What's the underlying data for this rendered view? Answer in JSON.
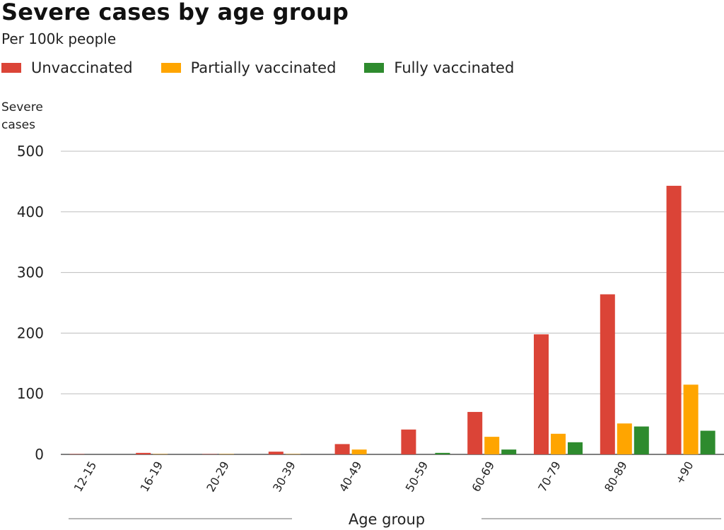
{
  "chart_data": {
    "type": "bar",
    "title": "Severe cases by age group",
    "subtitle": "Per 100k people",
    "ylabel": "Severe cases",
    "xlabel": "Age group",
    "ylim": [
      0,
      500
    ],
    "yticks": [
      0,
      100,
      200,
      300,
      400,
      500
    ],
    "grid": true,
    "legend_position": "top-left",
    "categories": [
      "12-15",
      "16-19",
      "20-29",
      "30-39",
      "40-49",
      "50-59",
      "60-69",
      "70-79",
      "80-89",
      "+90"
    ],
    "series": [
      {
        "name": "Unvaccinated",
        "color": "#db4437",
        "values": [
          0.5,
          2.5,
          0.5,
          4.5,
          17,
          41,
          70,
          198,
          264,
          443
        ]
      },
      {
        "name": "Partially vaccinated",
        "color": "#ffa500",
        "values": [
          0,
          0.5,
          0.5,
          0.5,
          8,
          0,
          29,
          34,
          51,
          115
        ]
      },
      {
        "name": "Fully vaccinated",
        "color": "#2e8b2e",
        "values": [
          0,
          0,
          0,
          0,
          0,
          2.5,
          8,
          20,
          46,
          39
        ]
      }
    ]
  }
}
